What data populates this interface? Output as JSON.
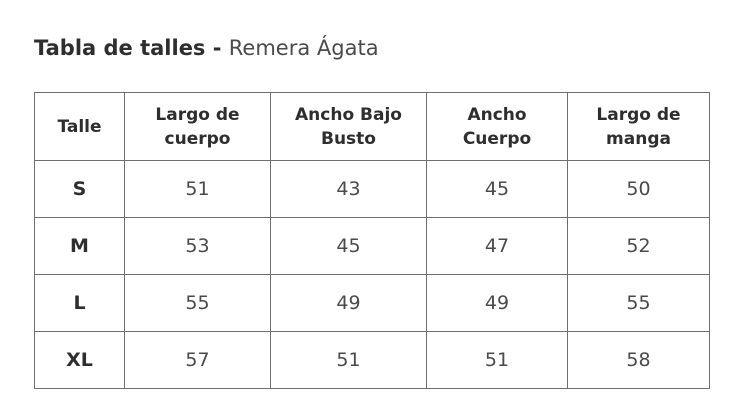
{
  "title": {
    "bold": "Tabla de talles -",
    "product": "Remera Ágata"
  },
  "table": {
    "headers": [
      [
        "Talle"
      ],
      [
        "Largo de",
        "cuerpo"
      ],
      [
        "Ancho Bajo",
        "Busto"
      ],
      [
        "Ancho",
        "Cuerpo"
      ],
      [
        "Largo de",
        "manga"
      ]
    ],
    "rows": [
      [
        "S",
        "51",
        "43",
        "45",
        "50"
      ],
      [
        "M",
        "53",
        "45",
        "47",
        "52"
      ],
      [
        "L",
        "55",
        "49",
        "49",
        "55"
      ],
      [
        "XL",
        "57",
        "51",
        "51",
        "58"
      ]
    ]
  }
}
